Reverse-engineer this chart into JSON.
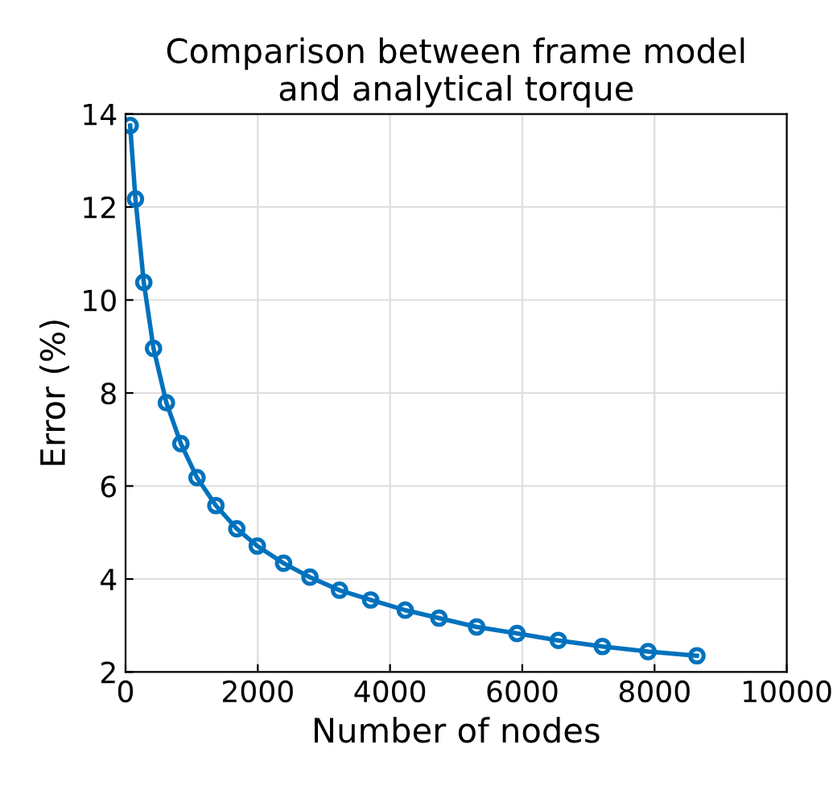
{
  "chart_data": {
    "type": "line",
    "title": "Comparison between frame model\nand analytical torque",
    "xlabel": "Number of nodes",
    "ylabel": "Error (%)",
    "series": [
      {
        "color": "#0072bd",
        "x": [
          70,
          150,
          276,
          423,
          618,
          837,
          1081,
          1366,
          1683,
          1992,
          2390,
          2789,
          3236,
          3707,
          4230,
          4740,
          5310,
          5920,
          6545,
          7212,
          7902,
          8641
        ],
        "values": [
          13.75,
          12.17,
          10.38,
          8.96,
          7.79,
          6.91,
          6.18,
          5.58,
          5.08,
          4.71,
          4.34,
          4.04,
          3.76,
          3.55,
          3.33,
          3.16,
          2.97,
          2.83,
          2.68,
          2.55,
          2.44,
          2.35
        ]
      }
    ],
    "xlim": [
      0,
      10000
    ],
    "ylim": [
      2,
      14
    ],
    "xticks": [
      0,
      2000,
      4000,
      6000,
      8000,
      10000
    ],
    "yticks": [
      2,
      4,
      6,
      8,
      10,
      12,
      14
    ],
    "grid": true,
    "marker": "circle",
    "line_style": "solid"
  }
}
